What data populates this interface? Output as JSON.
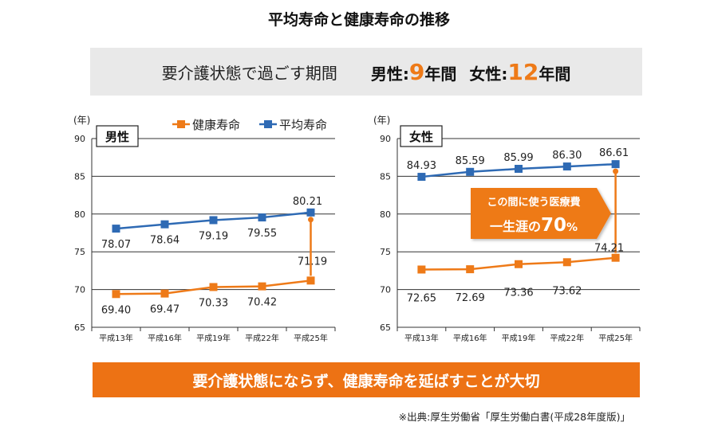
{
  "title": "平均寿命と健康寿命の推移",
  "banner": {
    "lead": "要介護状態で過ごす期間",
    "male_label": "男性:",
    "male_value": "9",
    "male_unit": "年間",
    "female_label": "女性:",
    "female_value": "12",
    "female_unit": "年間"
  },
  "legend": {
    "healthy": "健康寿命",
    "average": "平均寿命"
  },
  "callout": {
    "line1": "この間に使う医療費",
    "line2": "一生涯の",
    "value": "70",
    "unit": "%"
  },
  "footer": "要介護状態にならず、健康寿命を延ばすことが大切",
  "source": "※出典:厚生労働省「厚生労働白書(平成28年度版)」",
  "colors": {
    "average": "#2e6ab4",
    "healthy": "#ee7a18",
    "accent": "#ee7a18"
  },
  "chart_data": [
    {
      "type": "line",
      "panel_label": "男性",
      "ylabel": "(年)",
      "ylim": [
        65,
        90
      ],
      "yticks": [
        65,
        70,
        75,
        80,
        85,
        90
      ],
      "categories": [
        "平成13年",
        "平成16年",
        "平成19年",
        "平成22年",
        "平成25年"
      ],
      "grid": true,
      "legend": "top-right",
      "series": [
        {
          "name": "平均寿命",
          "values": [
            78.07,
            78.64,
            79.19,
            79.55,
            80.21
          ],
          "labels": [
            "78.07",
            "78.64",
            "79.19",
            "79.55",
            "80.21"
          ]
        },
        {
          "name": "健康寿命",
          "values": [
            69.4,
            69.47,
            70.33,
            70.42,
            71.19
          ],
          "labels": [
            "69.40",
            "69.47",
            "70.33",
            "70.42",
            "71.19"
          ]
        }
      ]
    },
    {
      "type": "line",
      "panel_label": "女性",
      "ylabel": "(年)",
      "ylim": [
        65,
        90
      ],
      "yticks": [
        65,
        70,
        75,
        80,
        85,
        90
      ],
      "categories": [
        "平成13年",
        "平成16年",
        "平成19年",
        "平成22年",
        "平成25年"
      ],
      "grid": true,
      "series": [
        {
          "name": "平均寿命",
          "values": [
            84.93,
            85.59,
            85.99,
            86.3,
            86.61
          ],
          "labels": [
            "84.93",
            "85.59",
            "85.99",
            "86.30",
            "86.61"
          ]
        },
        {
          "name": "健康寿命",
          "values": [
            72.65,
            72.69,
            73.36,
            73.62,
            74.21
          ],
          "labels": [
            "72.65",
            "72.69",
            "73.36",
            "73.62",
            "74.21"
          ]
        }
      ]
    }
  ]
}
